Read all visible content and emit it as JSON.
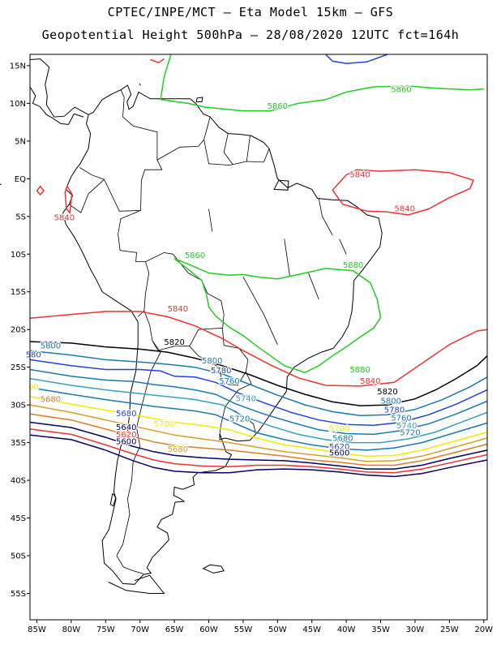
{
  "title_line1": "CPTEC/INPE/MCT –  Eta Model 15km – GFS",
  "title_line2": "Geopotential Height 500hPa – 28/08/2020 12UTC fct=164h",
  "axes": {
    "lat_labels": [
      "15N",
      "10N",
      "5N",
      "EQ",
      "5S",
      "10S",
      "15S",
      "20S",
      "25S",
      "30S",
      "35S",
      "40S",
      "45S",
      "50S",
      "55S"
    ],
    "lat_values": [
      15,
      10,
      5,
      0,
      -5,
      -10,
      -15,
      -20,
      -25,
      -30,
      -35,
      -40,
      -45,
      -50,
      -55
    ],
    "lon_labels": [
      "85W",
      "80W",
      "75W",
      "70W",
      "65W",
      "60W",
      "55W",
      "50W",
      "45W",
      "40W",
      "35W",
      "30W",
      "25W",
      "20W"
    ],
    "lon_values": [
      -85,
      -80,
      -75,
      -70,
      -65,
      -60,
      -55,
      -50,
      -45,
      -40,
      -35,
      -30,
      -25,
      -20
    ],
    "lon_range": [
      -86,
      -19.5
    ],
    "lat_range": [
      -58.5,
      16.5
    ]
  },
  "contour_colors": {
    "5880": "#22cc22",
    "5860": "#22cc22",
    "5840": "#ee3333",
    "5820": "#000000",
    "5800": "#1a7ab0",
    "5780": "#2244dd",
    "5760": "#1a7ab0",
    "5740": "#39a0c0",
    "5720": "#1a7ab0",
    "5700": "#eeee00",
    "5680": "#d4a030",
    "5660": "#e07c28",
    "5640": "#000066",
    "5620": "#ee3333",
    "5600": "#000066"
  },
  "contour_labels": [
    {
      "text": "5860",
      "color": "#22cc22",
      "lon": -32,
      "lat": 11.5
    },
    {
      "text": "5860",
      "color": "#22cc22",
      "lon": -50,
      "lat": 9.3
    },
    {
      "text": "5840",
      "color": "#ee3333",
      "lon": -38,
      "lat": 0.2
    },
    {
      "text": "5840",
      "color": "#ee3333",
      "lon": -31.5,
      "lat": -4.3
    },
    {
      "text": "5840",
      "color": "#ee3333",
      "lon": -81,
      "lat": -5.5
    },
    {
      "text": "5860",
      "color": "#22cc22",
      "lon": -62,
      "lat": -10.5
    },
    {
      "text": "5880",
      "color": "#22cc22",
      "lon": -39,
      "lat": -11.8
    },
    {
      "text": "5840",
      "color": "#ee3333",
      "lon": -64.5,
      "lat": -17.6
    },
    {
      "text": "5820",
      "color": "#000000",
      "lon": -65,
      "lat": -22
    },
    {
      "text": "5800",
      "color": "#1a7ab0",
      "lon": -83,
      "lat": -22.5
    },
    {
      "text": "580",
      "color": "#2244dd",
      "lon": -85.5,
      "lat": -23.7
    },
    {
      "text": "5800",
      "color": "#1a7ab0",
      "lon": -59.5,
      "lat": -24.5
    },
    {
      "text": "5780",
      "color": "#2244dd",
      "lon": -58.2,
      "lat": -25.8
    },
    {
      "text": "5760",
      "color": "#1a7ab0",
      "lon": -57,
      "lat": -27.2
    },
    {
      "text": "5740",
      "color": "#39a0c0",
      "lon": -54.6,
      "lat": -29.5
    },
    {
      "text": "5720",
      "color": "#1a7ab0",
      "lon": -55.5,
      "lat": -32.2
    },
    {
      "text": "5880",
      "color": "#22cc22",
      "lon": -38,
      "lat": -25.7
    },
    {
      "text": "5840",
      "color": "#ee3333",
      "lon": -36.5,
      "lat": -27.2
    },
    {
      "text": "5820",
      "color": "#000000",
      "lon": -34,
      "lat": -28.6
    },
    {
      "text": "5800",
      "color": "#1a7ab0",
      "lon": -33.5,
      "lat": -29.8
    },
    {
      "text": "5780",
      "color": "#2244dd",
      "lon": -33,
      "lat": -31
    },
    {
      "text": "5760",
      "color": "#1a7ab0",
      "lon": -32,
      "lat": -32.1
    },
    {
      "text": "5740",
      "color": "#39a0c0",
      "lon": -31.2,
      "lat": -33.1
    },
    {
      "text": "5720",
      "color": "#1a7ab0",
      "lon": -30.7,
      "lat": -34
    },
    {
      "text": "00",
      "color": "#eeee00",
      "lon": -85.5,
      "lat": -28
    },
    {
      "text": "5680",
      "color": "#e07c28",
      "lon": -83,
      "lat": -29.6
    },
    {
      "text": "5680",
      "color": "#2244dd",
      "lon": -72,
      "lat": -31.5
    },
    {
      "text": "5640",
      "color": "#000066",
      "lon": -72,
      "lat": -33.3
    },
    {
      "text": "5620",
      "color": "#ee3333",
      "lon": -72,
      "lat": -34.3
    },
    {
      "text": "5600",
      "color": "#000066",
      "lon": -72,
      "lat": -35.2
    },
    {
      "text": "5700",
      "color": "#eeee00",
      "lon": -66.5,
      "lat": -32.9
    },
    {
      "text": "5680",
      "color": "#d4a030",
      "lon": -64.5,
      "lat": -36.2
    },
    {
      "text": "5700",
      "color": "#eeee00",
      "lon": -41,
      "lat": -33.5
    },
    {
      "text": "5680",
      "color": "#1a7ab0",
      "lon": -40.5,
      "lat": -34.8
    },
    {
      "text": "5620",
      "color": "#2244dd",
      "lon": -41,
      "lat": -35.9
    },
    {
      "text": "5600",
      "color": "#000066",
      "lon": -41,
      "lat": -36.7
    }
  ]
}
